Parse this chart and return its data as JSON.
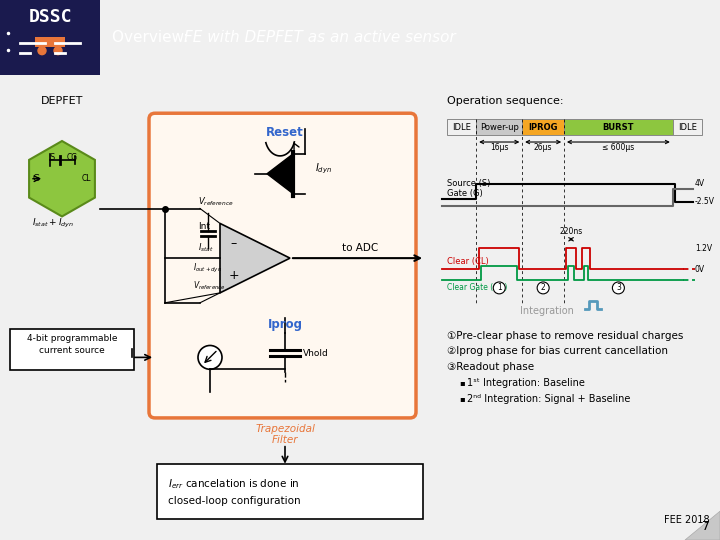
{
  "header_bg": "#2b2b6e",
  "header_dark_bg": "#1a1a4e",
  "body_bg": "#f0f0f0",
  "slide_number": "7",
  "conference": "FEE 2018",
  "depfet_color": "#8dc63f",
  "depfet_edge": "#5a8a1a",
  "filter_box_color": "#e8763a",
  "filter_box_fill": "#fff8f0",
  "reset_color": "#3366cc",
  "iprog_color": "#3366cc",
  "trap_filter_color": "#e8763a",
  "opamp_fill": "#d0d0d0",
  "clear_color": "#cc0000",
  "clear_gate_color": "#009944",
  "phase_colors": [
    "#f0f0f0",
    "#c8c8c8",
    "#f5a623",
    "#8dc63f",
    "#f0f0f0"
  ],
  "phase_labels": [
    "IDLE",
    "Power-up",
    "IPROG",
    "BURST",
    "IDLE"
  ],
  "phase_widths": [
    0.7,
    1.1,
    1.0,
    2.6,
    0.7
  ],
  "timing_labels": [
    "16μs",
    "26μs",
    "≤ 600μs"
  ],
  "v_labels": [
    "4V",
    "-2.5V",
    "1.2V",
    "0V"
  ],
  "timing_220ns": "220ns",
  "integration_label": "Integration",
  "annotations": [
    "①Pre-clear phase to remove residual charges",
    "②Iprog phase for bias current cancellation",
    "③Readout phase",
    "       1ˢᵗ Integration: Baseline",
    "       2ⁿᵈ Integration: Signal + Baseline"
  ],
  "ann_bullets": [
    false,
    false,
    false,
    true,
    true
  ]
}
